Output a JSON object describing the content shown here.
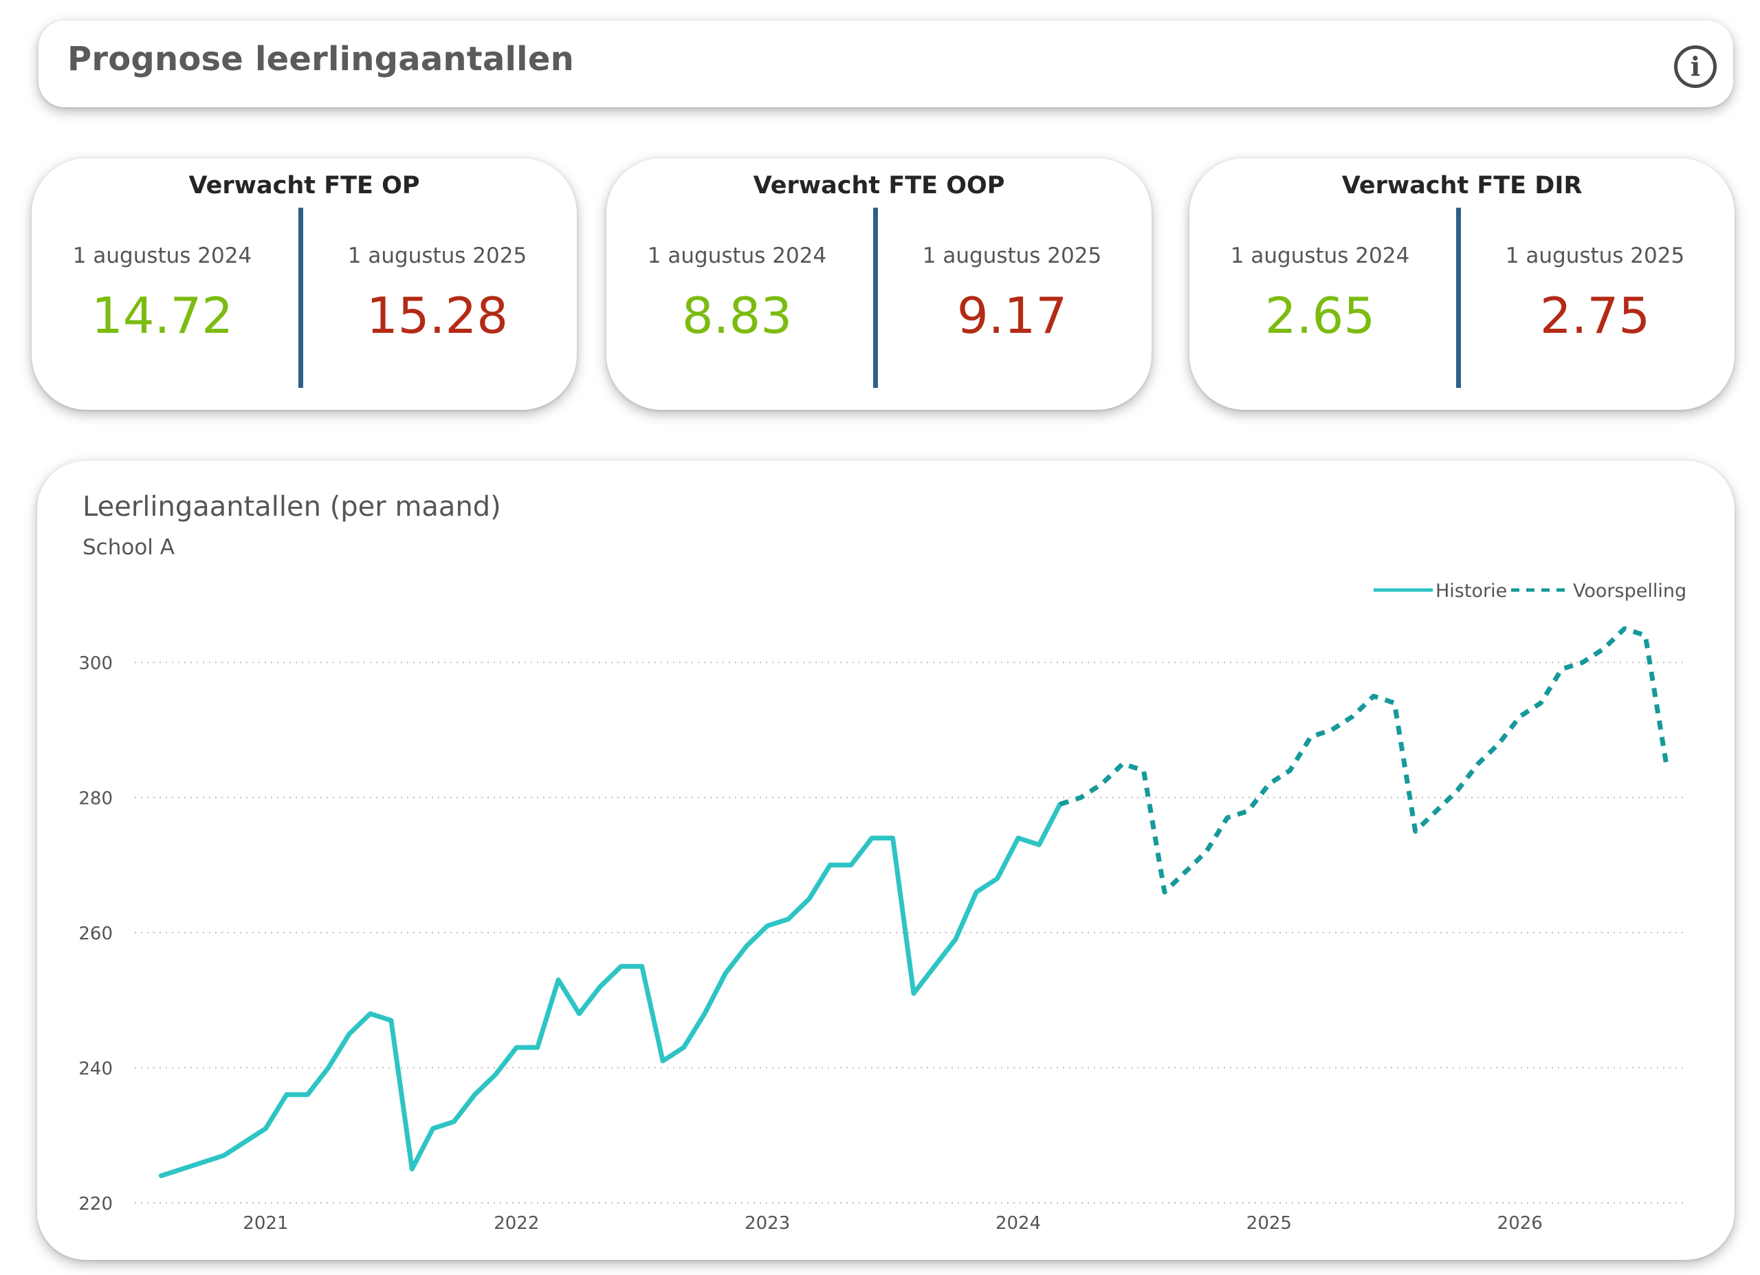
{
  "header": {
    "title": "Prognose leerlingaantallen",
    "info_icon": "info-circle-icon"
  },
  "kpis": [
    {
      "title": "Verwacht FTE OP",
      "left_date": "1 augustus 2024",
      "left_value": "14.72",
      "right_date": "1 augustus 2025",
      "right_value": "15.28"
    },
    {
      "title": "Verwacht FTE OOP",
      "left_date": "1 augustus 2024",
      "left_value": "8.83",
      "right_date": "1 augustus 2025",
      "right_value": "9.17"
    },
    {
      "title": "Verwacht FTE DIR",
      "left_date": "1 augustus 2024",
      "left_value": "2.65",
      "right_date": "1 augustus 2025",
      "right_value": "2.75"
    }
  ],
  "colors": {
    "kpi_left_value": "#7cbb10",
    "kpi_right_value": "#b32a16",
    "kpi_divider": "#2f5f86",
    "history_line": "#2ec4c4",
    "forecast_line": "#16999a"
  },
  "chart_data": {
    "type": "line",
    "title": "Leerlingaantallen (per maand)",
    "subtitle": "School A",
    "xlabel": "",
    "ylabel": "",
    "ylim": [
      220,
      310
    ],
    "yticks": [
      220,
      240,
      260,
      280,
      300
    ],
    "xlim": [
      "2020-07",
      "2026-09"
    ],
    "xticks": [
      {
        "label": "2021",
        "date": "2021-01"
      },
      {
        "label": "2022",
        "date": "2022-01"
      },
      {
        "label": "2023",
        "date": "2023-01"
      },
      {
        "label": "2024",
        "date": "2024-01"
      },
      {
        "label": "2025",
        "date": "2025-01"
      },
      {
        "label": "2026",
        "date": "2026-01"
      }
    ],
    "grid": "horizontal dotted",
    "legend": {
      "position": "top-right"
    },
    "series": [
      {
        "name": "Historie",
        "style": "solid",
        "x": [
          "2020-08",
          "2020-09",
          "2020-10",
          "2020-11",
          "2020-12",
          "2021-01",
          "2021-02",
          "2021-03",
          "2021-04",
          "2021-05",
          "2021-06",
          "2021-07",
          "2021-08",
          "2021-09",
          "2021-10",
          "2021-11",
          "2021-12",
          "2022-01",
          "2022-02",
          "2022-03",
          "2022-04",
          "2022-05",
          "2022-06",
          "2022-07",
          "2022-08",
          "2022-09",
          "2022-10",
          "2022-11",
          "2022-12",
          "2023-01",
          "2023-02",
          "2023-03",
          "2023-04",
          "2023-05",
          "2023-06",
          "2023-07",
          "2023-08",
          "2023-09",
          "2023-10",
          "2023-11",
          "2023-12",
          "2024-01",
          "2024-02",
          "2024-03"
        ],
        "values": [
          224,
          225,
          226,
          227,
          229,
          231,
          236,
          236,
          240,
          245,
          248,
          247,
          225,
          231,
          232,
          236,
          239,
          243,
          243,
          253,
          248,
          252,
          255,
          255,
          241,
          243,
          248,
          254,
          258,
          261,
          262,
          265,
          270,
          270,
          274,
          274,
          251,
          255,
          259,
          266,
          268,
          274,
          273,
          279
        ]
      },
      {
        "name": "Voorspelling",
        "style": "dashed",
        "x": [
          "2024-03",
          "2024-04",
          "2024-05",
          "2024-06",
          "2024-07",
          "2024-08",
          "2024-09",
          "2024-10",
          "2024-11",
          "2024-12",
          "2025-01",
          "2025-02",
          "2025-03",
          "2025-04",
          "2025-05",
          "2025-06",
          "2025-07",
          "2025-08",
          "2025-09",
          "2025-10",
          "2025-11",
          "2025-12",
          "2026-01",
          "2026-02",
          "2026-03",
          "2026-04",
          "2026-05",
          "2026-06",
          "2026-07",
          "2026-08"
        ],
        "values": [
          279,
          280,
          282,
          285,
          284,
          266,
          269,
          272,
          277,
          278,
          282,
          284,
          289,
          290,
          292,
          295,
          294,
          275,
          278,
          281,
          285,
          288,
          292,
          294,
          299,
          300,
          302,
          305,
          304,
          285
        ]
      }
    ]
  }
}
